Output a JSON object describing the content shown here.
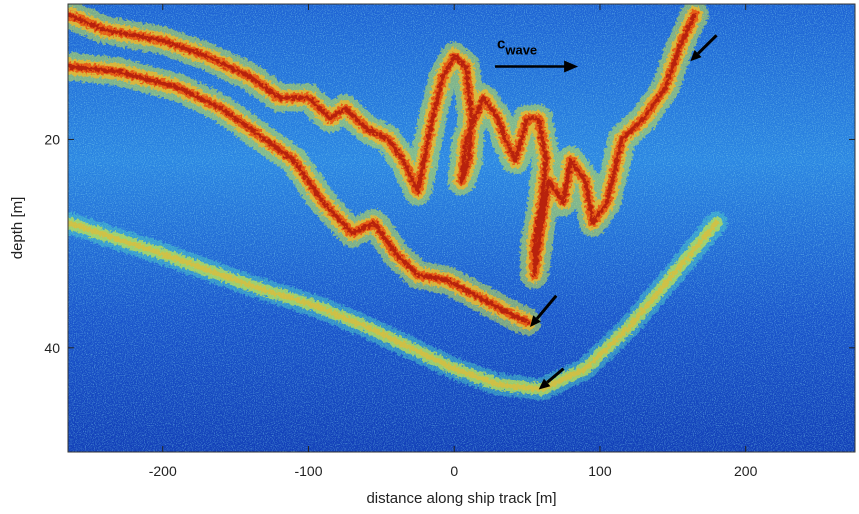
{
  "chart_data": {
    "type": "heatmap",
    "title": "",
    "xlabel": "distance along ship track [m]",
    "ylabel": "depth [m]",
    "xlim": [
      -265,
      275
    ],
    "ylim": [
      50,
      7
    ],
    "x_ticks": [
      -200,
      -100,
      0,
      100,
      200
    ],
    "y_ticks": [
      20,
      40
    ],
    "annotation": {
      "main": "c",
      "sub": "wave"
    },
    "colormap": [
      "#0b1e9e",
      "#1f5fd8",
      "#2fa6ee",
      "#55d6c8",
      "#c8e64a",
      "#f0b82a",
      "#e85a14",
      "#b31a08"
    ],
    "features": [
      {
        "name": "upper backscatter layer (overturning billows)",
        "intensity": "high",
        "points": [
          [
            -265,
            8
          ],
          [
            -240,
            9.5
          ],
          [
            -200,
            10.5
          ],
          [
            -170,
            12
          ],
          [
            -140,
            14
          ],
          [
            -120,
            16
          ],
          [
            -100,
            16
          ],
          [
            -85,
            18
          ],
          [
            -75,
            17
          ],
          [
            -60,
            19
          ],
          [
            -45,
            20
          ],
          [
            -35,
            22
          ],
          [
            -25,
            25
          ],
          [
            -15,
            18
          ],
          [
            -8,
            14
          ],
          [
            0,
            12
          ],
          [
            8,
            13
          ],
          [
            12,
            18
          ],
          [
            10,
            22
          ],
          [
            5,
            24
          ],
          [
            8,
            20
          ],
          [
            20,
            16
          ],
          [
            30,
            18
          ],
          [
            35,
            20
          ],
          [
            42,
            22
          ],
          [
            50,
            18
          ],
          [
            58,
            18
          ],
          [
            63,
            22
          ],
          [
            60,
            26
          ],
          [
            55,
            30
          ],
          [
            55,
            33
          ],
          [
            60,
            28
          ],
          [
            65,
            24
          ],
          [
            75,
            26
          ],
          [
            80,
            22
          ],
          [
            90,
            24
          ],
          [
            95,
            28
          ],
          [
            105,
            26
          ],
          [
            115,
            20
          ],
          [
            130,
            18
          ],
          [
            145,
            15
          ],
          [
            155,
            11
          ],
          [
            165,
            8
          ]
        ]
      },
      {
        "name": "lower descending layer",
        "intensity": "high",
        "points": [
          [
            -265,
            13
          ],
          [
            -230,
            13.5
          ],
          [
            -190,
            15
          ],
          [
            -160,
            17
          ],
          [
            -130,
            20
          ],
          [
            -110,
            22
          ],
          [
            -90,
            26
          ],
          [
            -70,
            29
          ],
          [
            -55,
            28
          ],
          [
            -40,
            31
          ],
          [
            -25,
            33
          ],
          [
            -5,
            33.5
          ],
          [
            15,
            35
          ],
          [
            35,
            36.5
          ],
          [
            50,
            37.5
          ]
        ]
      },
      {
        "name": "deep faint layer",
        "intensity": "medium",
        "points": [
          [
            -265,
            28
          ],
          [
            -200,
            31
          ],
          [
            -140,
            34
          ],
          [
            -95,
            36
          ],
          [
            -60,
            38
          ],
          [
            -30,
            40
          ],
          [
            0,
            42
          ],
          [
            30,
            43.5
          ],
          [
            60,
            44
          ],
          [
            90,
            42
          ],
          [
            120,
            38
          ],
          [
            150,
            33
          ],
          [
            180,
            28
          ]
        ]
      }
    ],
    "arrows": [
      {
        "from": [
          180,
          10
        ],
        "to": [
          162,
          12.5
        ]
      },
      {
        "from": [
          70,
          35
        ],
        "to": [
          52,
          38
        ]
      },
      {
        "from": [
          75,
          42
        ],
        "to": [
          58,
          44
        ]
      }
    ],
    "wave_arrow": {
      "from": [
        28,
        13
      ],
      "to": [
        85,
        13
      ]
    }
  }
}
